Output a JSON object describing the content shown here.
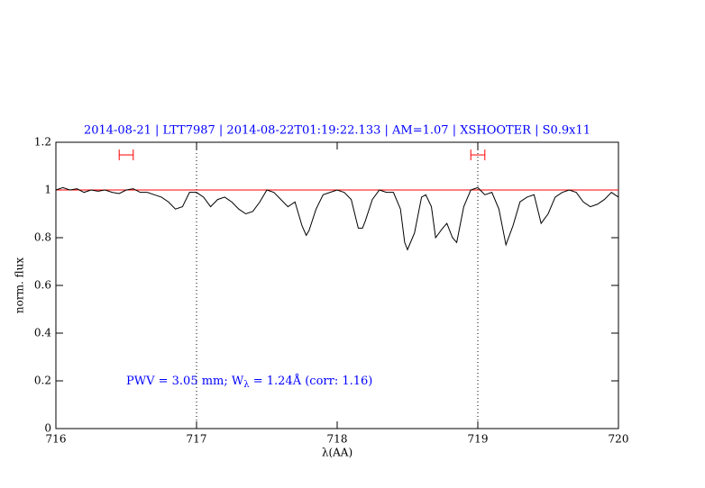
{
  "chart_data": {
    "type": "line",
    "title": "2014-08-21 | LTT7987 | 2014-08-22T01:19:22.133 | AM=1.07 | XSHOOTER | S0.9x11",
    "x_label": "λ(AA)",
    "y_label": "norm. flux",
    "annotation": {
      "text": "PWV = 3.05 mm; W",
      "sub": "λ",
      "rest": " = 1.24Å (corr: 1.16)"
    },
    "xlim": [
      716,
      720
    ],
    "ylim": [
      0,
      1.2
    ],
    "xticks": [
      716,
      717,
      718,
      719,
      720
    ],
    "yticks": [
      0,
      0.2,
      0.4,
      0.6,
      0.8,
      1,
      1.2
    ],
    "vlines": [
      717,
      719
    ],
    "reference": 1,
    "reference_color": "#ff0000",
    "ranges": [
      [
        716.45,
        716.55
      ],
      [
        718.95,
        719.05
      ]
    ],
    "range_level": 1.147,
    "range_color": "#ff0000",
    "series": [
      {
        "color": "#000000",
        "x": [
          716.0,
          716.05,
          716.1,
          716.15,
          716.2,
          716.25,
          716.3,
          716.35,
          716.4,
          716.45,
          716.5,
          716.55,
          716.6,
          716.65,
          716.7,
          716.75,
          716.8,
          716.85,
          716.9,
          716.95,
          717.0,
          717.05,
          717.1,
          717.15,
          717.2,
          717.25,
          717.3,
          717.35,
          717.4,
          717.45,
          717.5,
          717.55,
          717.6,
          717.65,
          717.7,
          717.75,
          717.78,
          717.8,
          717.85,
          717.9,
          717.95,
          718.0,
          718.05,
          718.1,
          718.15,
          718.18,
          718.2,
          718.25,
          718.3,
          718.35,
          718.4,
          718.45,
          718.48,
          718.5,
          718.55,
          718.6,
          718.63,
          718.67,
          718.7,
          718.75,
          718.78,
          718.82,
          718.85,
          718.9,
          718.95,
          719.0,
          719.05,
          719.1,
          719.15,
          719.2,
          719.25,
          719.3,
          719.35,
          719.4,
          719.45,
          719.5,
          719.55,
          719.6,
          719.65,
          719.7,
          719.75,
          719.8,
          719.85,
          719.9,
          719.95,
          720.0
        ],
        "values": [
          1.0,
          1.01,
          1.0,
          1.005,
          0.99,
          1.0,
          0.995,
          1.0,
          0.99,
          0.985,
          1.0,
          1.005,
          0.99,
          0.99,
          0.98,
          0.97,
          0.95,
          0.92,
          0.93,
          0.99,
          0.99,
          0.97,
          0.93,
          0.96,
          0.97,
          0.95,
          0.92,
          0.9,
          0.91,
          0.95,
          1.0,
          0.99,
          0.96,
          0.93,
          0.95,
          0.85,
          0.81,
          0.83,
          0.92,
          0.98,
          0.99,
          1.0,
          0.99,
          0.96,
          0.84,
          0.84,
          0.87,
          0.96,
          1.0,
          0.99,
          0.99,
          0.92,
          0.78,
          0.75,
          0.82,
          0.97,
          0.98,
          0.93,
          0.8,
          0.84,
          0.86,
          0.8,
          0.78,
          0.93,
          1.0,
          1.01,
          0.98,
          0.99,
          0.92,
          0.77,
          0.85,
          0.95,
          0.97,
          0.98,
          0.86,
          0.9,
          0.97,
          0.99,
          1.0,
          0.99,
          0.95,
          0.93,
          0.94,
          0.96,
          0.99,
          0.97
        ]
      }
    ]
  }
}
